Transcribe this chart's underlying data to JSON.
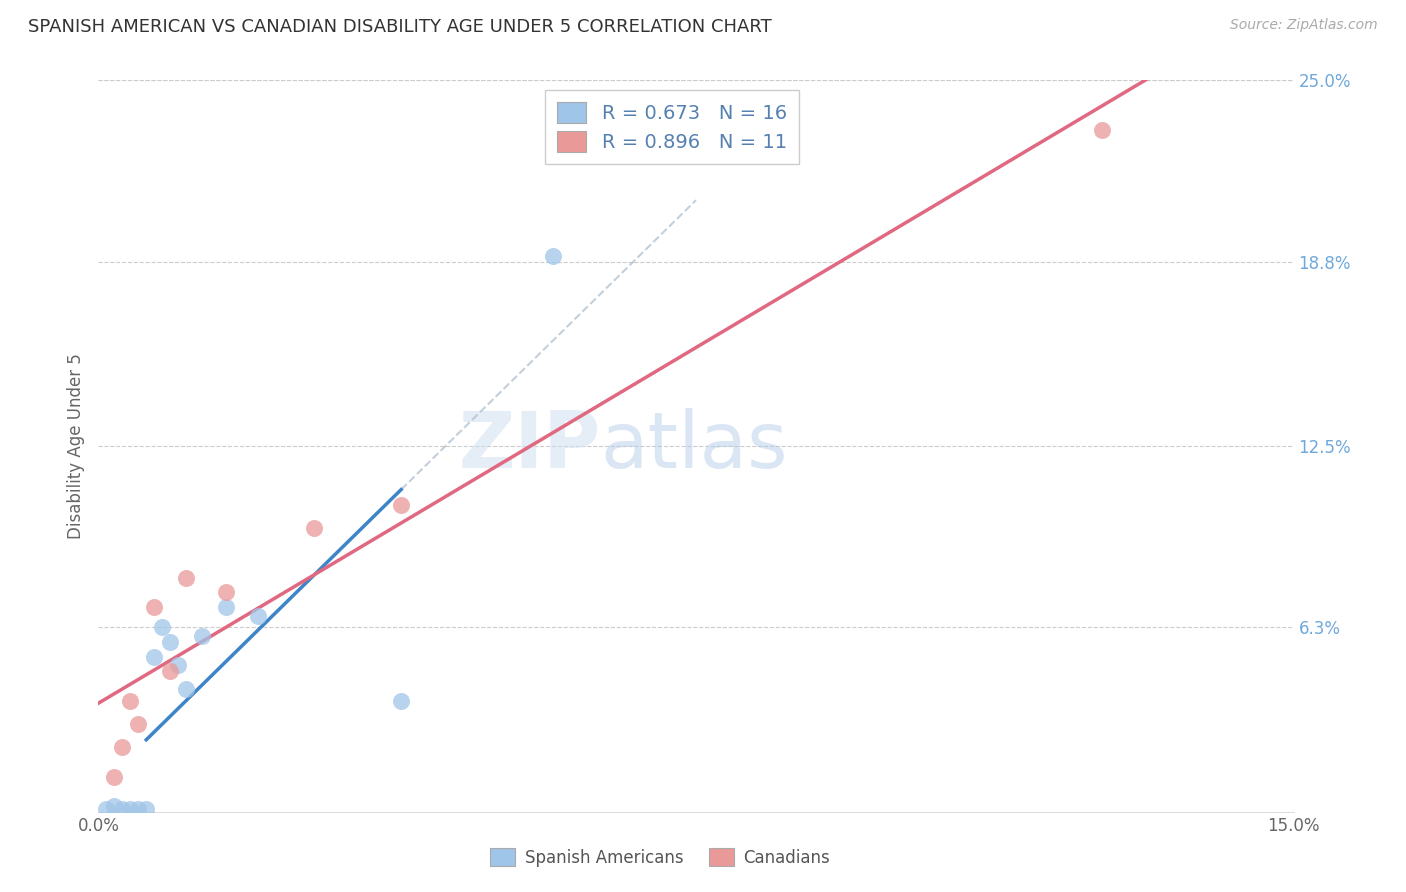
{
  "title": "SPANISH AMERICAN VS CANADIAN DISABILITY AGE UNDER 5 CORRELATION CHART",
  "source": "Source: ZipAtlas.com",
  "ylabel": "Disability Age Under 5",
  "xlim": [
    0.0,
    0.15
  ],
  "ylim": [
    0.0,
    0.25
  ],
  "xticks": [
    0.0,
    0.025,
    0.05,
    0.075,
    0.1,
    0.125,
    0.15
  ],
  "xticklabels": [
    "0.0%",
    "",
    "",
    "",
    "",
    "",
    "15.0%"
  ],
  "yticks_right": [
    0.063,
    0.125,
    0.188,
    0.25
  ],
  "ytick_right_labels": [
    "6.3%",
    "12.5%",
    "18.8%",
    "25.0%"
  ],
  "spanish_x": [
    0.001,
    0.002,
    0.003,
    0.004,
    0.005,
    0.006,
    0.007,
    0.008,
    0.009,
    0.01,
    0.011,
    0.013,
    0.016,
    0.02,
    0.038,
    0.057
  ],
  "spanish_y": [
    0.001,
    0.002,
    0.001,
    0.001,
    0.001,
    0.001,
    0.053,
    0.063,
    0.058,
    0.05,
    0.042,
    0.06,
    0.07,
    0.067,
    0.038,
    0.19
  ],
  "canadian_x": [
    0.002,
    0.003,
    0.004,
    0.005,
    0.007,
    0.009,
    0.011,
    0.016,
    0.027,
    0.038,
    0.126
  ],
  "canadian_y": [
    0.012,
    0.022,
    0.038,
    0.03,
    0.07,
    0.048,
    0.08,
    0.075,
    0.097,
    0.105,
    0.233
  ],
  "blue_color": "#9fc5e8",
  "pink_color": "#ea9999",
  "blue_line_color": "#3d85c8",
  "pink_line_color": "#e06880",
  "r_spanish": 0.673,
  "n_spanish": 16,
  "r_canadian": 0.896,
  "n_canadian": 11,
  "watermark_zip": "ZIP",
  "watermark_atlas": "atlas",
  "background_color": "#ffffff",
  "grid_color": "#cccccc"
}
